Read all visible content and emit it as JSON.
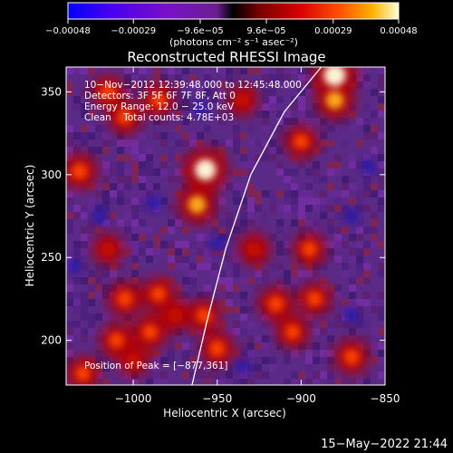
{
  "chart_data": {
    "type": "heatmap",
    "title": "Reconstructed RHESSI Image",
    "xlabel": "Heliocentric X (arcsec)",
    "ylabel": "Heliocentric Y (arcsec)",
    "xlim": [
      -1040,
      -850
    ],
    "ylim": [
      173,
      365
    ],
    "x_ticks": [
      -1000,
      -950,
      -900,
      -850
    ],
    "x_tick_labels": [
      "−1000",
      "−950",
      "−900",
      "−850"
    ],
    "y_ticks": [
      200,
      250,
      300,
      350
    ],
    "y_tick_labels": [
      "200",
      "250",
      "300",
      "350"
    ],
    "colorbar": {
      "min": -0.00048,
      "max": 0.00048,
      "ticks": [
        -0.00048,
        -0.00029,
        -9.6e-05,
        9.6e-05,
        0.00029,
        0.00048
      ],
      "tick_labels": [
        "−0.00048",
        "−0.00029",
        "−9.6e−05",
        "9.6e−05",
        "0.00029",
        "0.00048"
      ],
      "unit_label": "(photons cm⁻² s⁻¹ asec⁻²)"
    },
    "annotations": [
      "10−Nov−2012 12:39:48.000 to 12:45:48.000",
      "Detectors: 3F 5F 6F 7F 8F, Att 0",
      "Energy Range: 12.0 − 25.0 keV",
      "Clean    Total counts: 4.78E+03"
    ],
    "peak_label": "Position of Peak = [−877,361]",
    "limb_curve": [
      [
        -965,
        173
      ],
      [
        -956,
        212
      ],
      [
        -945,
        255
      ],
      [
        -930,
        300
      ],
      [
        -910,
        338
      ],
      [
        -888,
        365
      ]
    ],
    "bright_regions": [
      {
        "x": -880,
        "y": 360,
        "level": 1.0
      },
      {
        "x": -880,
        "y": 345,
        "level": 0.7
      },
      {
        "x": -957,
        "y": 303,
        "level": 0.95
      },
      {
        "x": -962,
        "y": 282,
        "level": 0.7
      },
      {
        "x": -1032,
        "y": 302,
        "level": 0.6
      },
      {
        "x": -1005,
        "y": 335,
        "level": 0.55
      },
      {
        "x": -1015,
        "y": 350,
        "level": 0.5
      },
      {
        "x": -985,
        "y": 345,
        "level": 0.5
      },
      {
        "x": -1005,
        "y": 225,
        "level": 0.55
      },
      {
        "x": -985,
        "y": 228,
        "level": 0.5
      },
      {
        "x": -990,
        "y": 205,
        "level": 0.55
      },
      {
        "x": -1010,
        "y": 200,
        "level": 0.5
      },
      {
        "x": -975,
        "y": 215,
        "level": 0.45
      },
      {
        "x": -1030,
        "y": 180,
        "level": 0.5
      },
      {
        "x": -1000,
        "y": 188,
        "level": 0.45
      },
      {
        "x": -950,
        "y": 195,
        "level": 0.55
      },
      {
        "x": -958,
        "y": 215,
        "level": 0.5
      },
      {
        "x": -915,
        "y": 222,
        "level": 0.55
      },
      {
        "x": -905,
        "y": 205,
        "level": 0.5
      },
      {
        "x": -892,
        "y": 225,
        "level": 0.5
      },
      {
        "x": -870,
        "y": 190,
        "level": 0.55
      },
      {
        "x": -895,
        "y": 255,
        "level": 0.5
      },
      {
        "x": -928,
        "y": 255,
        "level": 0.45
      },
      {
        "x": -900,
        "y": 320,
        "level": 0.5
      },
      {
        "x": -1015,
        "y": 255,
        "level": 0.4
      },
      {
        "x": -935,
        "y": 345,
        "level": 0.4
      }
    ],
    "dark_regions": [
      {
        "x": -988,
        "y": 283
      },
      {
        "x": -950,
        "y": 258
      },
      {
        "x": -870,
        "y": 275
      },
      {
        "x": -1020,
        "y": 275
      },
      {
        "x": -860,
        "y": 305
      },
      {
        "x": -935,
        "y": 185
      },
      {
        "x": -870,
        "y": 215
      },
      {
        "x": -1035,
        "y": 245
      },
      {
        "x": -960,
        "y": 340
      }
    ]
  },
  "footer": {
    "timestamp": "15−May−2022 21:44"
  }
}
